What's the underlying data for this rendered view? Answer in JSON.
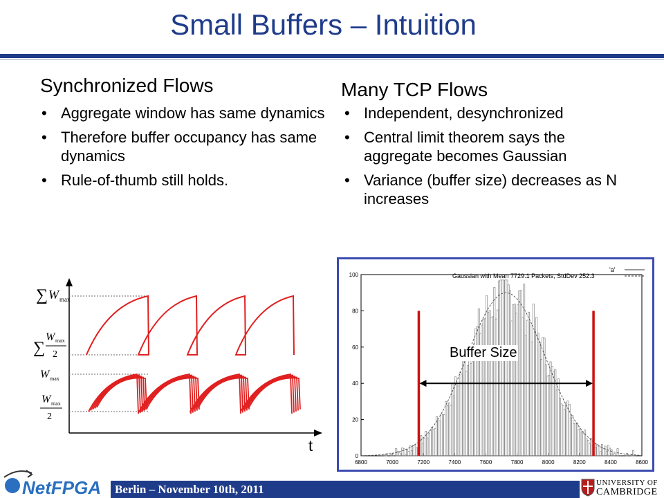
{
  "slide": {
    "title": "Small Buffers – Intuition",
    "footer": "Berlin – November 10th, 2011"
  },
  "left": {
    "heading": "Synchronized Flows",
    "bullets": [
      "Aggregate window has same dynamics",
      "Therefore buffer occupancy has same dynamics",
      "Rule-of-thumb still holds."
    ]
  },
  "right": {
    "heading": "Many TCP Flows",
    "bullets": [
      "Independent, desynchronized",
      "Central limit theorem says the aggregate becomes Gaussian",
      "Variance (buffer size) decreases as N increases"
    ]
  },
  "sync_plot": {
    "time_label": "t",
    "w_label": "W",
    "max_label": "max",
    "sum_symbol": "∑",
    "two_label": "2",
    "line_color": "#e02020"
  },
  "histogram": {
    "legend_a": "'a'",
    "legend_gauss": "Gaussian with Mean 7729.1 Packets, StdDev 252.3",
    "buffer_label": "Buffer Size",
    "marker_color": "#cc1111",
    "frame_color": "#3b4bb0",
    "x_ticks": [
      "6800",
      "7000",
      "7200",
      "7400",
      "7600",
      "7800",
      "8000",
      "8200",
      "8400",
      "8600"
    ],
    "y_ticks": [
      "0",
      "20",
      "40",
      "60",
      "80",
      "100"
    ],
    "mean": 7729.1,
    "stddev": 252.3,
    "xlim": [
      6800,
      8600
    ],
    "ylim": [
      0,
      100
    ],
    "buffer_range": [
      7170,
      8290
    ]
  },
  "logos": {
    "netfpga": "NetFPGA",
    "univ_line1": "UNIVERSITY OF",
    "univ_line2": "CAMBRIDGE"
  }
}
